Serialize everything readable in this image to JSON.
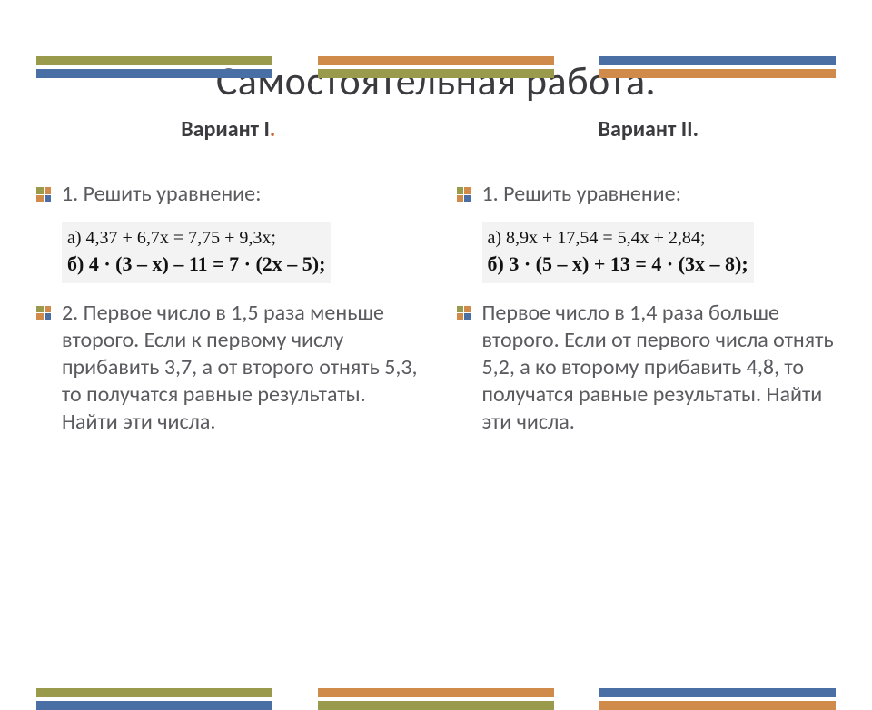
{
  "colors": {
    "olive": "#9a9a4d",
    "blue": "#4a6fa5",
    "orange": "#d08a4a",
    "title": "#3b3b3f",
    "body_text": "#5a5a5f",
    "eq_bg": "#f3f3f3",
    "dot_accent": "#cc6633"
  },
  "title": "Самостоятельная работа.",
  "variant1": {
    "heading_main": "Вариант I",
    "heading_dot": ".",
    "task1_label": "1. Решить уравнение:",
    "eq_a": "а) 4,37 + 6,7x = 7,75 + 9,3x;",
    "eq_b": "б) 4 · (3 – x) – 11 = 7 · (2x – 5);",
    "task2": "2. Первое число в 1,5 раза меньше второго. Если к первому числу прибавить 3,7, а от второго отнять 5,3, то получатся равные результаты. Найти эти числа."
  },
  "variant2": {
    "heading": "Вариант II.",
    "task1_label": "1. Решить уравнение:",
    "eq_a": "а) 8,9x + 17,54 = 5,4x + 2,84;",
    "eq_b": "б) 3 · (5 – x) + 13 = 4 · (3x – 8);",
    "task2": "Первое число в 1,4 раза больше второго. Если от первого числа отнять 5,2, а ко второму прибавить 4,8, то получатся равные результаты. Найти эти числа."
  },
  "stripes": {
    "top_sets": [
      [
        "olive",
        "blue"
      ],
      [
        "orange",
        "olive"
      ],
      [
        "blue",
        "orange"
      ]
    ],
    "bottom_sets": [
      [
        "olive",
        "blue"
      ],
      [
        "orange",
        "olive"
      ],
      [
        "blue",
        "orange"
      ]
    ]
  },
  "bullet_colors": [
    "#9a9a4d",
    "#d08a4a",
    "#d08a4a",
    "#4a6fa5"
  ]
}
